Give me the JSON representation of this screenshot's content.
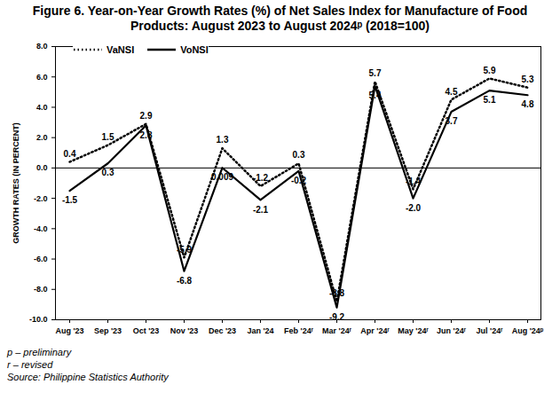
{
  "chart_data": {
    "type": "line",
    "title": "Figure 6. Year-on-Year Growth Rates (%) of Net Sales Index for Manufacture of Food Products: August 2023 to August 2024ᵖ (2018=100)",
    "y_label": "GROWTH RATES (IN PERCENT)",
    "categories": [
      "Aug '23",
      "Sep '23",
      "Oct '23",
      "Nov '23",
      "Dec '23",
      "Jan '24",
      "Feb '24ʳ",
      "Mar '24ʳ",
      "Apr '24ʳ",
      "May '24ʳ",
      "Jun '24ʳ",
      "Jul '24ʳ",
      "Aug '24ᵖ"
    ],
    "series": [
      {
        "name": "VaNSI",
        "color": "#000000",
        "line_style": "dotted",
        "values": [
          0.4,
          1.5,
          2.9,
          -5.9,
          1.3,
          -1.2,
          0.3,
          -8.8,
          5.7,
          -1.4,
          4.5,
          5.9,
          5.3
        ],
        "value_labels": [
          "0.4",
          "1.5",
          "2.9",
          "-5.9",
          "1.3",
          "-1.2",
          "0.3",
          "-8.8",
          "5.7",
          "-1.4",
          "4.5",
          "5.9",
          "5.3"
        ]
      },
      {
        "name": "VoNSI",
        "color": "#000000",
        "line_style": "solid",
        "values": [
          -1.5,
          0.3,
          2.8,
          -6.8,
          0.009,
          -2.1,
          -0.2,
          -9.2,
          5.4,
          -2.0,
          3.7,
          5.1,
          4.8
        ],
        "value_labels": [
          "-1.5",
          "0.3",
          "2.8",
          "-6.8",
          "0.009",
          "-2.1",
          "-0.2",
          "-9.2",
          "5.4",
          "-2.0",
          "3.7",
          "5.1",
          "4.8"
        ]
      }
    ],
    "ylim": [
      -10,
      8
    ],
    "yticks": [
      {
        "value": -10,
        "label": "-10.0"
      },
      {
        "value": -8,
        "label": "-8.0"
      },
      {
        "value": -6,
        "label": "-6.0"
      },
      {
        "value": -4,
        "label": "-4.0"
      },
      {
        "value": -2,
        "label": "-2.0"
      },
      {
        "value": 0,
        "label": "0.0"
      },
      {
        "value": 2,
        "label": "2.0"
      },
      {
        "value": 4,
        "label": "4.0"
      },
      {
        "value": 6,
        "label": "6.0"
      },
      {
        "value": 8,
        "label": "8.0"
      }
    ],
    "data_labels": true,
    "legend": "upper left",
    "grid": false,
    "notes": [
      "p – preliminary",
      "r – revised",
      "Source: Philippine Statistics Authority"
    ]
  }
}
